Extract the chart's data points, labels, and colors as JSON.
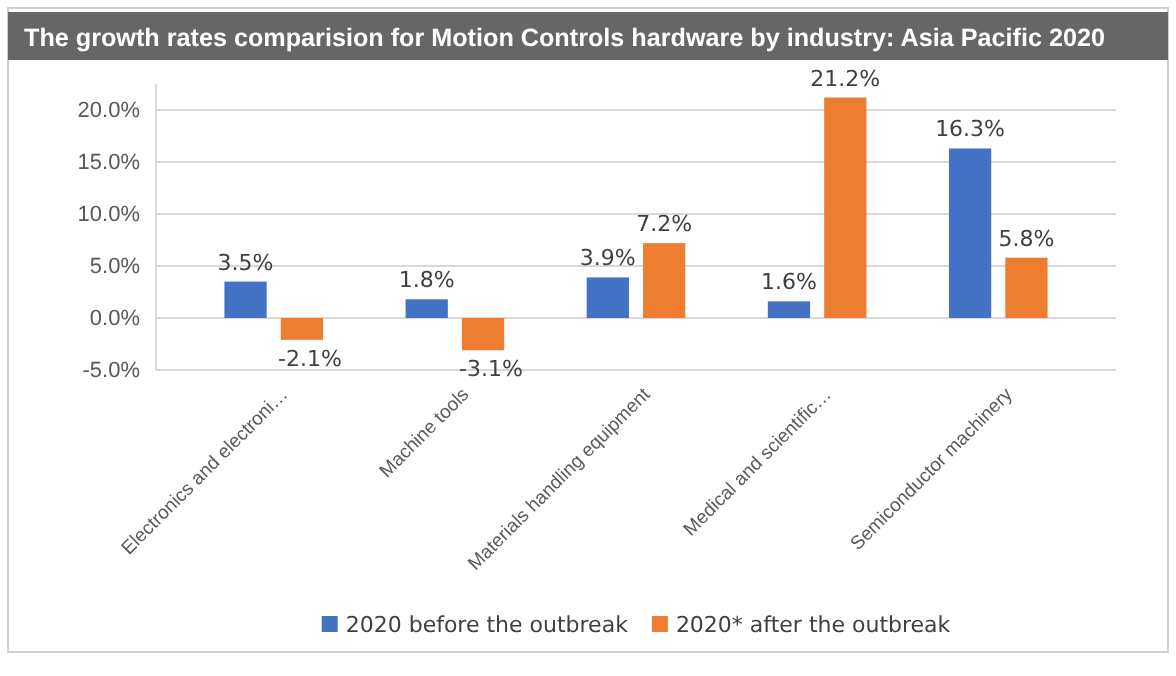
{
  "chart_data": {
    "type": "bar",
    "title": "The growth rates comparision for Motion Controls hardware by industry: Asia Pacific 2020",
    "categories": [
      "Electronics and electroni…",
      "Machine tools",
      "Materials handling equipment",
      "Medical and scientific…",
      "Semiconductor machinery"
    ],
    "series": [
      {
        "name": "2020 before the outbreak",
        "color": "#4472c4",
        "values": [
          3.5,
          1.8,
          3.9,
          1.6,
          16.3
        ],
        "value_labels": [
          "3.5%",
          "1.8%",
          "3.9%",
          "1.6%",
          "16.3%"
        ]
      },
      {
        "name": "2020* after the outbreak",
        "color": "#ed7d31",
        "values": [
          -2.1,
          -3.1,
          7.2,
          21.2,
          5.8
        ],
        "value_labels": [
          "-2.1%",
          "-3.1%",
          "7.2%",
          "21.2%",
          "5.8%"
        ]
      }
    ],
    "ylim": [
      -5,
      22.5
    ],
    "yticks": [
      {
        "value": -5,
        "label": "-5.0%"
      },
      {
        "value": 0,
        "label": "0.0%"
      },
      {
        "value": 5,
        "label": "5.0%"
      },
      {
        "value": 10,
        "label": "10.0%"
      },
      {
        "value": 15,
        "label": "15.0%"
      },
      {
        "value": 20,
        "label": "20.0%"
      }
    ],
    "grid": "y",
    "legend": "bottom"
  }
}
